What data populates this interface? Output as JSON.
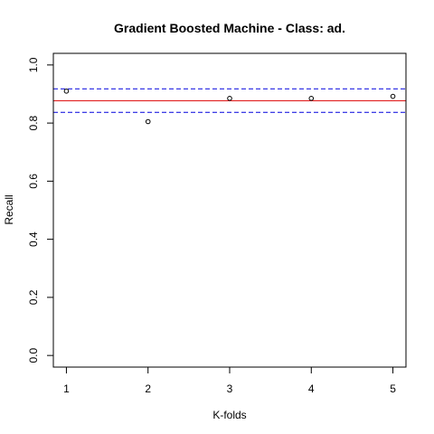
{
  "chart_data": {
    "type": "scatter",
    "title": "Gradient Boosted Machine - Class: ad.",
    "xlabel": "K-folds",
    "ylabel": "Recall",
    "x": [
      1,
      2,
      3,
      4,
      5
    ],
    "y": [
      0.91,
      0.805,
      0.885,
      0.885,
      0.892
    ],
    "xlim": [
      0.84,
      5.16
    ],
    "ylim": [
      -0.04,
      1.04
    ],
    "xticks": [
      1,
      2,
      3,
      4,
      5
    ],
    "yticks": [
      0.0,
      0.2,
      0.4,
      0.6,
      0.8,
      1.0
    ],
    "xtick_labels": [
      "1",
      "2",
      "3",
      "4",
      "5"
    ],
    "ytick_labels": [
      "0.0",
      "0.2",
      "0.4",
      "0.6",
      "0.8",
      "1.0"
    ],
    "reference_lines": [
      {
        "y": 0.877,
        "color": "#dd0000",
        "style": "solid"
      },
      {
        "y": 0.918,
        "color": "#0000dd",
        "style": "dashed"
      },
      {
        "y": 0.837,
        "color": "#0000dd",
        "style": "dashed"
      }
    ],
    "point_color": "#000000",
    "grid": false,
    "legend": "none"
  }
}
